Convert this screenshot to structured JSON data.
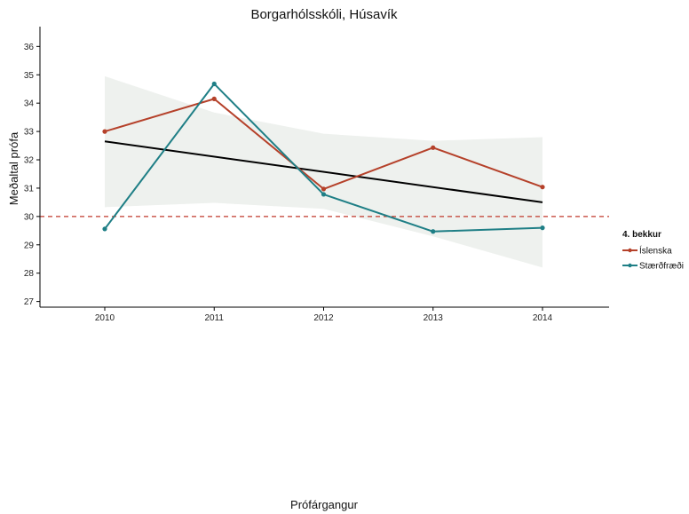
{
  "chart_data": {
    "type": "line",
    "title": "Borgarhólsskóli, Húsavík",
    "xlabel": "Prófárgangur",
    "ylabel": "Meðaltal prófa",
    "x": [
      2010,
      2011,
      2012,
      2013,
      2014
    ],
    "ylim": [
      26.8,
      36.7
    ],
    "y_ticks": [
      27,
      28,
      29,
      30,
      31,
      32,
      33,
      34,
      35,
      36
    ],
    "grid": false,
    "legend": {
      "title": "4. bekkur",
      "placement": "right",
      "entries": [
        "Íslenska",
        "Stærðfræði"
      ]
    },
    "series": [
      {
        "name": "Íslenska",
        "color": "#b5412a",
        "values": [
          33.0,
          34.15,
          30.97,
          32.43,
          31.04
        ]
      },
      {
        "name": "Stærðfræði",
        "color": "#1f7f86",
        "values": [
          29.56,
          34.68,
          30.78,
          29.47,
          29.6
        ]
      }
    ],
    "trend": {
      "color": "#000000",
      "start": 32.65,
      "end": 30.5
    },
    "confidence_band": {
      "color": "#eef1ee",
      "upper": [
        34.95,
        33.67,
        32.92,
        32.67,
        32.8
      ],
      "lower": [
        30.33,
        30.48,
        30.27,
        29.3,
        28.2
      ]
    },
    "reference_line": {
      "value": 30,
      "color": "#c0392b",
      "style": "dashed"
    }
  }
}
